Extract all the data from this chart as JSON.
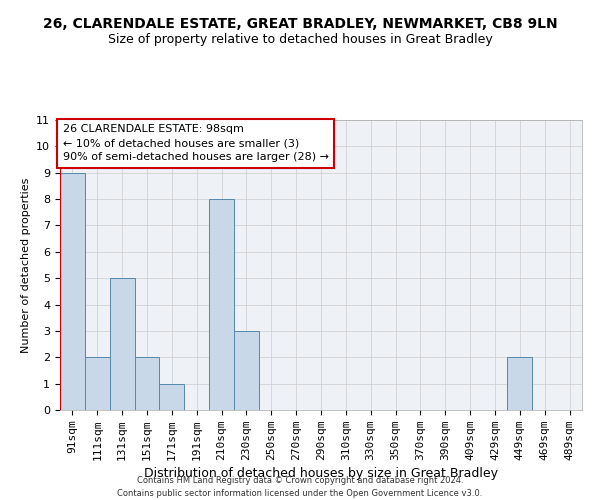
{
  "title": "26, CLARENDALE ESTATE, GREAT BRADLEY, NEWMARKET, CB8 9LN",
  "subtitle": "Size of property relative to detached houses in Great Bradley",
  "xlabel": "Distribution of detached houses by size in Great Bradley",
  "ylabel": "Number of detached properties",
  "categories": [
    "91sqm",
    "111sqm",
    "131sqm",
    "151sqm",
    "171sqm",
    "191sqm",
    "210sqm",
    "230sqm",
    "250sqm",
    "270sqm",
    "290sqm",
    "310sqm",
    "330sqm",
    "350sqm",
    "370sqm",
    "390sqm",
    "409sqm",
    "429sqm",
    "449sqm",
    "469sqm",
    "489sqm"
  ],
  "values": [
    9,
    2,
    5,
    2,
    1,
    0,
    8,
    3,
    0,
    0,
    0,
    0,
    0,
    0,
    0,
    0,
    0,
    0,
    2,
    0,
    0
  ],
  "bar_color": "#c8d8e8",
  "bar_edge_color": "#5588aa",
  "ylim": [
    0,
    11
  ],
  "red_line_index": 0,
  "annotation_text": "26 CLARENDALE ESTATE: 98sqm\n← 10% of detached houses are smaller (3)\n90% of semi-detached houses are larger (28) →",
  "annotation_box_color": "#ffffff",
  "annotation_box_edge": "#cc0000",
  "footer": "Contains HM Land Registry data © Crown copyright and database right 2024.\nContains public sector information licensed under the Open Government Licence v3.0.",
  "background_color": "#eef2f7",
  "grid_color": "#cccccc",
  "title_fontsize": 10,
  "subtitle_fontsize": 9,
  "ylabel_fontsize": 8,
  "xlabel_fontsize": 9,
  "tick_fontsize": 8,
  "annot_fontsize": 8,
  "footer_fontsize": 6
}
